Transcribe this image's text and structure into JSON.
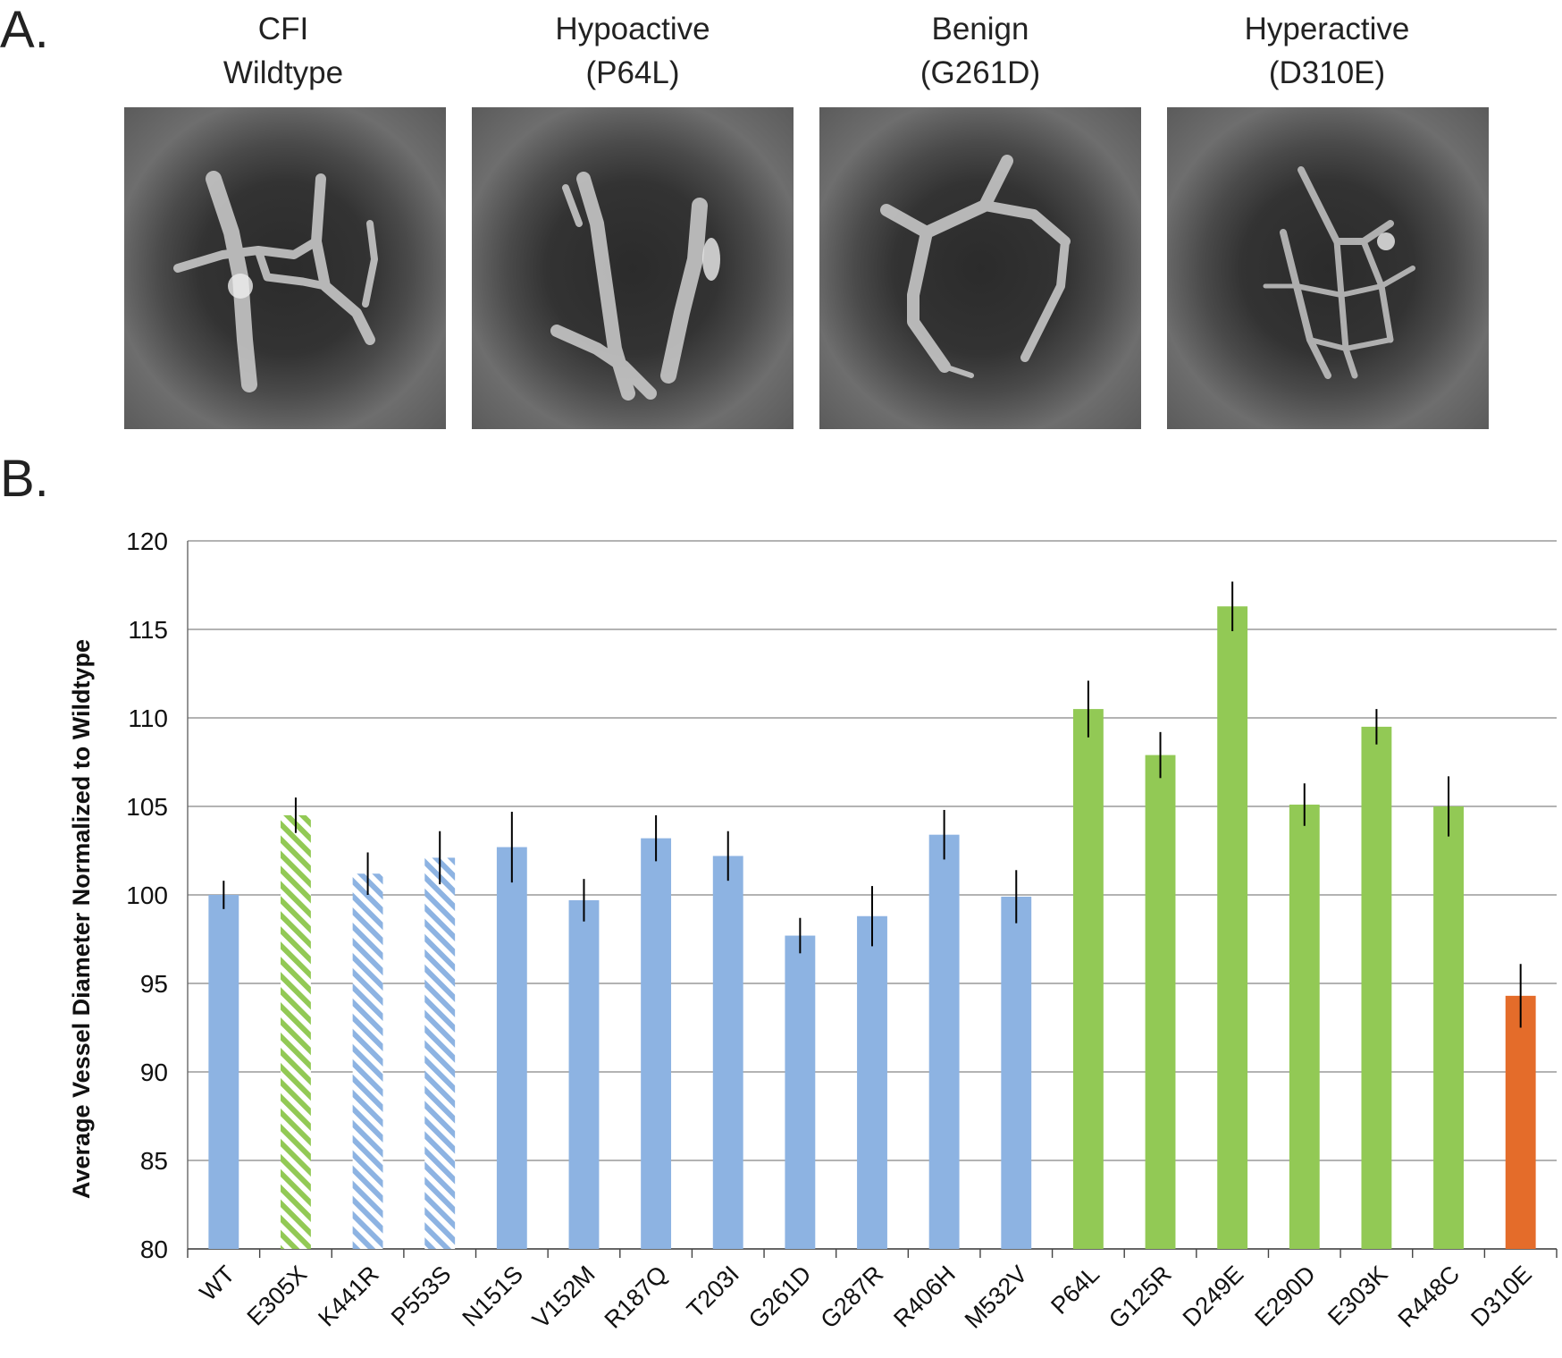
{
  "panel_a_label": "A.",
  "panel_b_label": "B.",
  "images": [
    {
      "line1": "CFI",
      "line2": "Wildtype"
    },
    {
      "line1": "Hypoactive",
      "line2": "(P64L)"
    },
    {
      "line1": "Benign",
      "line2": "(G261D)"
    },
    {
      "line1": "Hyperactive",
      "line2": "(D310E)"
    }
  ],
  "colors": {
    "blue": "#8db3e2",
    "green": "#92c955",
    "orange": "#e46c2a",
    "error_bar": "#000000",
    "grid": "#9a9a9a"
  },
  "chart_data": {
    "type": "bar",
    "title": "",
    "xlabel": "",
    "ylabel": "Average Vessel Diameter Normalized to Wildtype",
    "ylim": [
      80,
      120
    ],
    "yticks": [
      80,
      85,
      90,
      95,
      100,
      105,
      110,
      115,
      120
    ],
    "grid": true,
    "categories": [
      "WT",
      "E305X",
      "K441R",
      "P553S",
      "N151S",
      "V152M",
      "R187Q",
      "T203I",
      "G261D",
      "G287R",
      "R406H",
      "M532V",
      "P64L",
      "G125R",
      "D249E",
      "E290D",
      "E303K",
      "R448C",
      "D310E"
    ],
    "values": [
      100.0,
      104.5,
      101.2,
      102.1,
      102.7,
      99.7,
      103.2,
      102.2,
      97.7,
      98.8,
      103.4,
      99.9,
      110.5,
      107.9,
      116.3,
      105.1,
      109.5,
      105.0,
      94.3
    ],
    "errors": [
      0.8,
      1.0,
      1.2,
      1.5,
      2.0,
      1.2,
      1.3,
      1.4,
      1.0,
      1.7,
      1.4,
      1.5,
      1.6,
      1.3,
      1.4,
      1.2,
      1.0,
      1.7,
      1.8
    ],
    "bar_colors": [
      "blue",
      "green",
      "blue",
      "blue",
      "blue",
      "blue",
      "blue",
      "blue",
      "blue",
      "blue",
      "blue",
      "blue",
      "green",
      "green",
      "green",
      "green",
      "green",
      "green",
      "orange"
    ],
    "bar_patterns": [
      "solid",
      "hatched",
      "hatched",
      "hatched",
      "solid",
      "solid",
      "solid",
      "solid",
      "solid",
      "solid",
      "solid",
      "solid",
      "solid",
      "solid",
      "solid",
      "solid",
      "solid",
      "solid",
      "solid"
    ]
  }
}
